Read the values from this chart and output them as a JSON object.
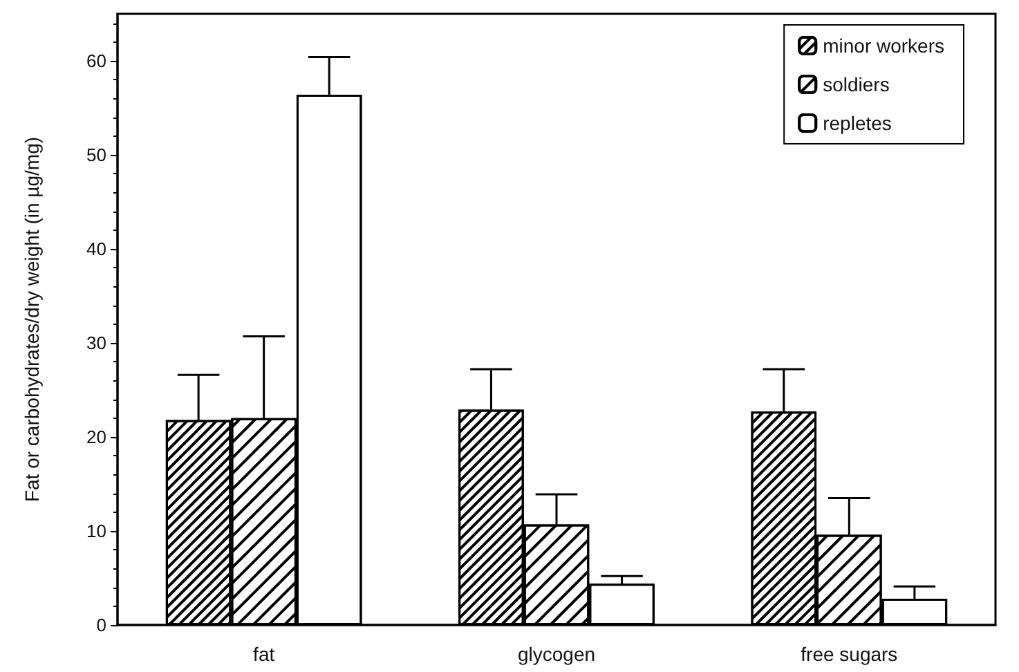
{
  "chart_data": {
    "type": "bar",
    "ylabel": "Fat or carbohydrates/dry weight (in µg/mg)",
    "categories": [
      "fat",
      "glycogen",
      "free sugars"
    ],
    "series": [
      {
        "name": "minor workers",
        "color": "#ffffff",
        "values": [
          21.8,
          22.9,
          22.7
        ],
        "errors": [
          [
            21.8,
            26.6
          ],
          [
            22.9,
            27.2
          ],
          [
            22.7,
            27.2
          ]
        ]
      },
      {
        "name": "soldiers",
        "color": "#ffffff",
        "values": [
          22.0,
          10.7,
          9.6
        ],
        "errors": [
          [
            22.0,
            30.7
          ],
          [
            10.7,
            13.9
          ],
          [
            9.6,
            13.5
          ]
        ]
      },
      {
        "name": "repletes",
        "color": "#ffffff",
        "values": [
          56.4,
          4.4,
          2.8
        ],
        "errors": [
          [
            56.4,
            60.4
          ],
          [
            4.4,
            5.2
          ],
          [
            2.8,
            4.1
          ]
        ]
      }
    ],
    "ylim": [
      0,
      65
    ],
    "yticks": [
      0,
      10,
      20,
      30,
      40,
      50,
      60
    ],
    "grid": false,
    "legend": "top right"
  }
}
